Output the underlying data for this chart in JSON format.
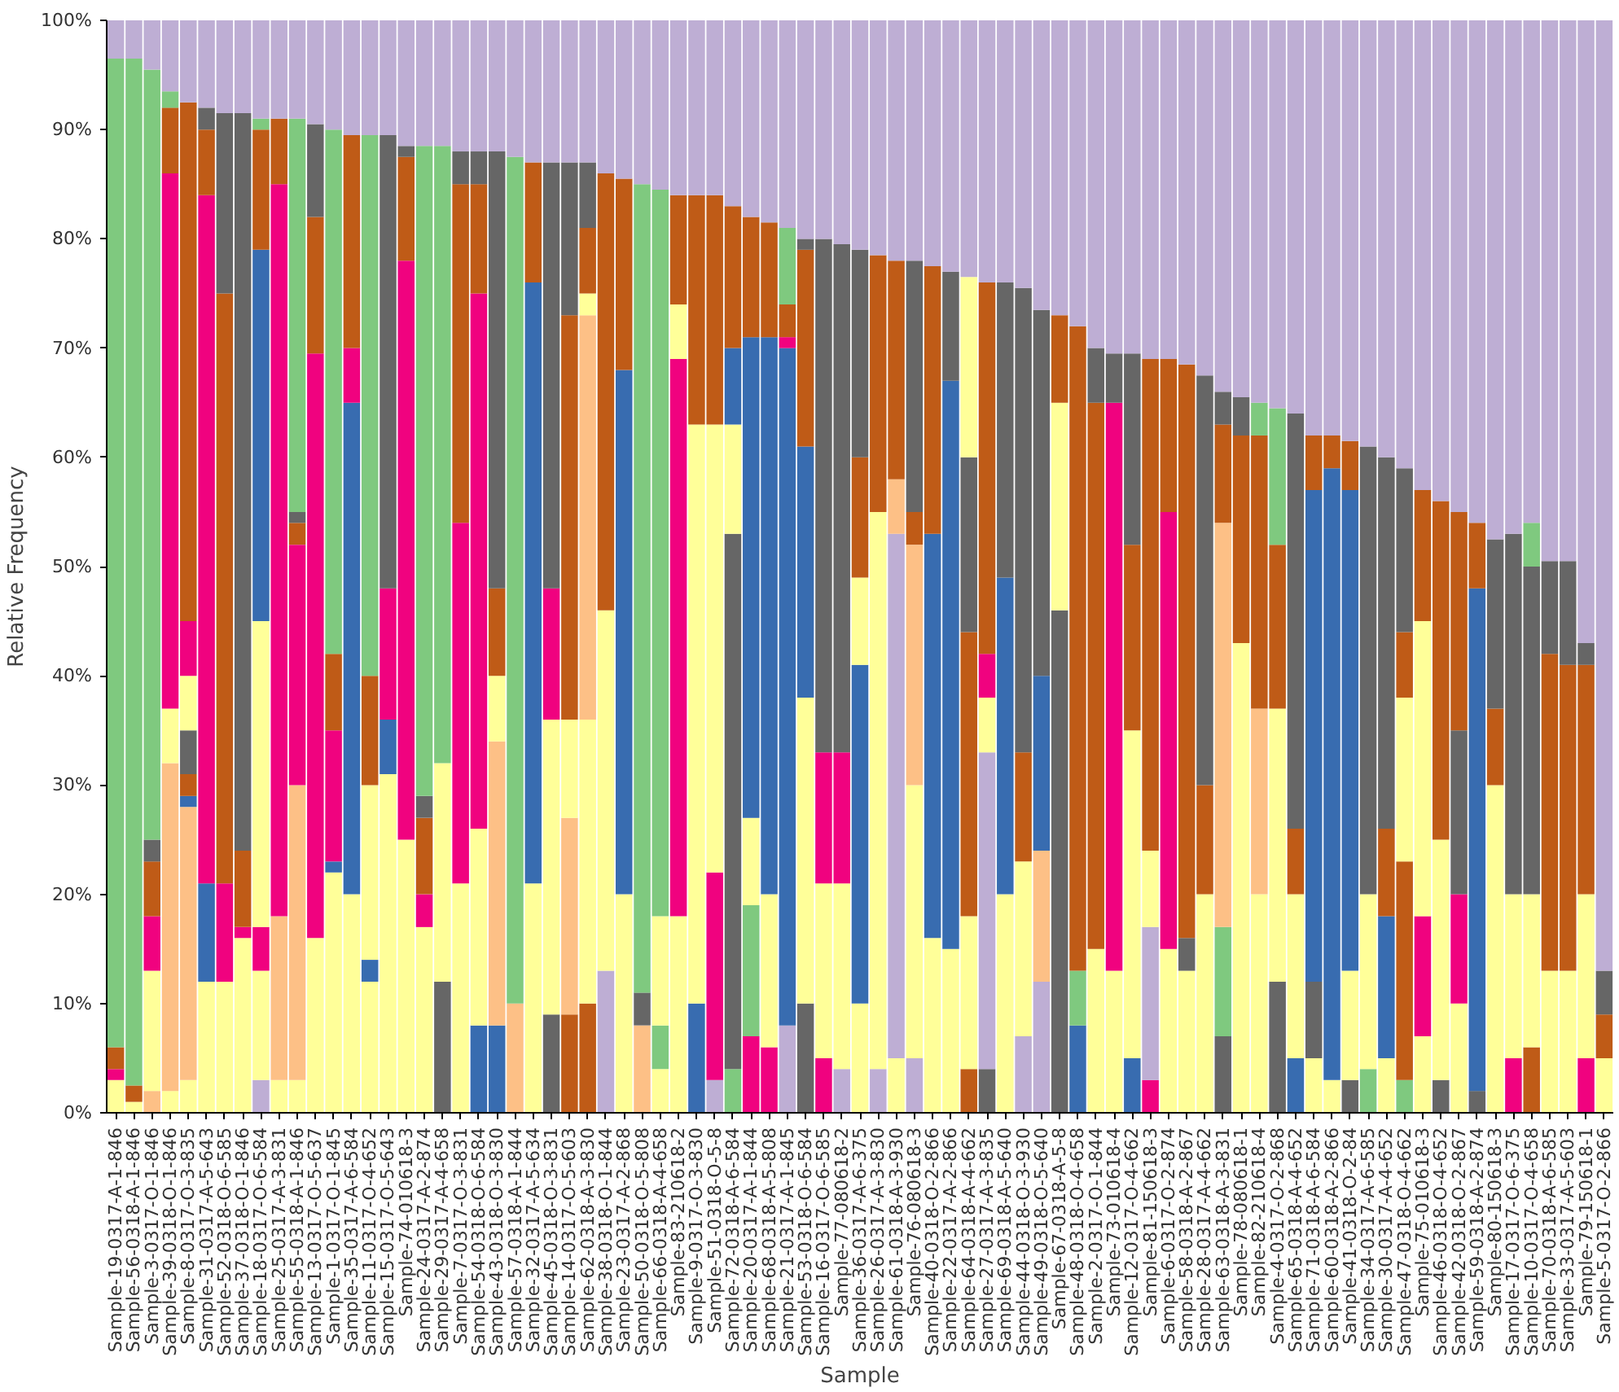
{
  "chart_data": {
    "type": "bar",
    "stacked": true,
    "xlabel": "Sample",
    "ylabel": "Relative Frequency",
    "categories": [
      "Sample-19-0317-A-1-846",
      "Sample-56-0318-A-1-846",
      "Sample-3-0317-O-1-846",
      "Sample-39-0318-O-1-846",
      "Sample-8-0317-O-3-835",
      "Sample-31-0317-A-5-643",
      "Sample-52-0318-O-6-585",
      "Sample-37-0318-O-1-846",
      "Sample-18-0317-O-6-584",
      "Sample-25-0317-A-3-831",
      "Sample-55-0318-A-1-846",
      "Sample-13-0317-O-5-637",
      "Sample-1-0317-O-1-845",
      "Sample-35-0317-A-6-584",
      "Sample-11-0317-O-4-652",
      "Sample-15-0317-O-5-643",
      "Sample-74-010618-3",
      "Sample-24-0317-A-2-874",
      "Sample-29-0317-A-4-658",
      "Sample-7-0317-O-3-831",
      "Sample-54-0318-O-6-584",
      "Sample-43-0318-O-3-830",
      "Sample-57-0318-A-1-844",
      "Sample-32-0317-A-5-634",
      "Sample-45-0318-O-3-831",
      "Sample-14-0317-O-5-603",
      "Sample-62-0318-A-3-830",
      "Sample-38-0318-O-1-844",
      "Sample-23-0317-A-2-868",
      "Sample-50-0318-O-5-808",
      "Sample-66-0318-A-4-658",
      "Sample-83-210618-2",
      "Sample-9-0317-O-3-830",
      "Sample-51-0318-O-5-8",
      "Sample-72-0318-A-6-584",
      "Sample-20-0317-A-1-844",
      "Sample-68-0318-A-5-808",
      "Sample-21-0317-A-1-845",
      "Sample-53-0318-O-6-584",
      "Sample-16-0317-O-6-585",
      "Sample-77-080618-2",
      "Sample-36-0317-A-6-375",
      "Sample-26-0317-A-3-830",
      "Sample-61-0318-A-3-930",
      "Sample-76-080618-3",
      "Sample-40-0318-O-2-866",
      "Sample-22-0317-A-2-866",
      "Sample-64-0318-A-4-662",
      "Sample-27-0317-A-3-835",
      "Sample-69-0318-A-5-640",
      "Sample-44-0318-O-3-930",
      "Sample-49-0318-O-5-640",
      "Sample-67-0318-A-5-8",
      "Sample-48-0318-O-4-658",
      "Sample-2-0317-O-1-844",
      "Sample-73-010618-4",
      "Sample-12-0317-O-4-662",
      "Sample-81-150618-3",
      "Sample-6-0317-O-2-874",
      "Sample-58-0318-A-2-867",
      "Sample-28-0317-A-4-662",
      "Sample-63-0318-A-3-831",
      "Sample-78-080618-1",
      "Sample-82-210618-4",
      "Sample-4-0317-O-2-868",
      "Sample-65-0318-A-4-652",
      "Sample-71-0318-A-6-584",
      "Sample-60-0318-A-2-866",
      "Sample-41-0318-O-2-84",
      "Sample-34-0317-A-6-585",
      "Sample-30-0317-A-4-652",
      "Sample-47-0318-O-4-662",
      "Sample-75-010618-3",
      "Sample-46-0318-O-4-652",
      "Sample-42-0318-O-2-867",
      "Sample-59-0318-A-2-874",
      "Sample-80-150618-3",
      "Sample-17-0317-O-6-375",
      "Sample-10-0317-O-4-658",
      "Sample-70-0318-A-6-585",
      "Sample-33-0317-A-5-603",
      "Sample-79-150618-1",
      "Sample-5-0317-O-2-866"
    ],
    "ylim": [
      0,
      100
    ],
    "yticks": [
      {
        "value": 0,
        "label": "0%"
      },
      {
        "value": 10,
        "label": "10%"
      },
      {
        "value": 20,
        "label": "20%"
      },
      {
        "value": 30,
        "label": "30%"
      },
      {
        "value": 40,
        "label": "40%"
      },
      {
        "value": 50,
        "label": "50%"
      },
      {
        "value": 60,
        "label": "60%"
      },
      {
        "value": 70,
        "label": "70%"
      },
      {
        "value": 80,
        "label": "80%"
      },
      {
        "value": 90,
        "label": "90%"
      },
      {
        "value": 100,
        "label": "100%"
      }
    ],
    "series": [
      {
        "values": [
          3,
          1,
          2,
          2,
          3,
          12,
          12,
          16,
          3,
          3,
          3,
          16,
          22,
          20,
          12,
          31,
          25,
          17,
          12,
          21,
          8,
          8,
          10,
          21,
          9,
          9,
          10,
          13,
          20,
          8,
          4,
          18,
          10,
          3,
          4,
          7,
          6,
          8,
          10,
          5,
          4,
          10,
          4,
          5,
          5,
          16,
          15,
          4,
          4,
          20,
          7,
          12,
          46,
          8,
          15,
          13,
          5,
          3,
          15,
          13,
          20,
          7,
          43,
          20,
          12,
          5,
          5,
          3,
          3,
          4,
          5,
          3,
          7,
          3,
          10,
          2,
          30,
          5,
          6,
          13,
          13,
          5,
          5
        ],
        "colors": [
          "#ffff99",
          "#ffff99",
          "#fdc086",
          "#ffff99",
          "#ffff99",
          "#ffff99",
          "#ffff99",
          "#ffff99",
          "#beaed4",
          "#ffff99",
          "#ffff99",
          "#ffff99",
          "#ffff99",
          "#ffff99",
          "#ffff99",
          "#ffff99",
          "#ffff99",
          "#ffff99",
          "#666666",
          "#ffff99",
          "#386cb0",
          "#386cb0",
          "#fdc086",
          "#ffff99",
          "#666666",
          "#bf5b17",
          "#bf5b17",
          "#beaed4",
          "#ffff99",
          "#fdc086",
          "#ffff99",
          "#ffff99",
          "#386cb0",
          "#beaed4",
          "#7fc97f",
          "#f0027f",
          "#f0027f",
          "#beaed4",
          "#666666",
          "#f0027f",
          "#beaed4",
          "#ffff99",
          "#beaed4",
          "#ffff99",
          "#beaed4",
          "#ffff99",
          "#ffff99",
          "#bf5b17",
          "#666666",
          "#ffff99",
          "#beaed4",
          "#beaed4",
          "#666666",
          "#386cb0",
          "#ffff99",
          "#ffff99",
          "#386cb0",
          "#f0027f",
          "#ffff99",
          "#ffff99",
          "#ffff99",
          "#666666",
          "#ffff99",
          "#ffff99",
          "#666666",
          "#386cb0",
          "#ffff99",
          "#ffff99",
          "#666666",
          "#7fc97f",
          "#ffff99",
          "#7fc97f",
          "#ffff99",
          "#666666",
          "#ffff99",
          "#666666",
          "#ffff99",
          "#f0027f",
          "#bf5b17",
          "#ffff99",
          "#ffff99",
          "#f0027f",
          "#ffff99"
        ]
      },
      {
        "values": [
          1,
          1.5,
          11,
          30,
          25,
          9,
          9,
          1,
          10,
          15,
          27,
          53.5,
          1,
          45,
          2,
          5,
          53,
          3,
          20,
          33,
          18,
          26,
          77.5,
          55,
          27,
          18,
          26,
          33,
          48,
          3,
          4,
          51,
          53,
          19,
          49,
          12,
          14,
          62,
          28,
          16,
          17,
          31,
          51,
          48,
          25,
          37,
          52,
          14,
          29,
          29,
          16,
          12,
          19,
          5,
          50,
          52,
          30,
          14,
          40,
          3,
          10,
          10,
          19,
          17,
          25,
          15,
          7,
          56,
          10,
          16,
          13,
          20,
          11,
          22,
          10,
          46,
          7,
          15,
          14,
          29,
          28,
          15,
          4
        ],
        "colors": [
          "#f0027f",
          "#bf5b17",
          "#ffff99",
          "#fdc086",
          "#fdc086",
          "#386cb0",
          "#f0027f",
          "#f0027f",
          "#ffff99",
          "#fdc086",
          "#fdc086",
          "#f0027f",
          "#386cb0",
          "#386cb0",
          "#386cb0",
          "#386cb0",
          "#f0027f",
          "#f0027f",
          "#ffff99",
          "#f0027f",
          "#ffff99",
          "#fdc086",
          "#7fc97f",
          "#386cb0",
          "#ffff99",
          "#fdc086",
          "#ffff99",
          "#ffff99",
          "#386cb0",
          "#666666",
          "#7fc97f",
          "#f0027f",
          "#ffff99",
          "#f0027f",
          "#666666",
          "#7fc97f",
          "#ffff99",
          "#386cb0",
          "#ffff99",
          "#ffff99",
          "#ffff99",
          "#386cb0",
          "#ffff99",
          "#beaed4",
          "#ffff99",
          "#386cb0",
          "#386cb0",
          "#ffff99",
          "#beaed4",
          "#386cb0",
          "#ffff99",
          "#fdc086",
          "#ffff99",
          "#7fc97f",
          "#bf5b17",
          "#f0027f",
          "#ffff99",
          "#beaed4",
          "#f0027f",
          "#666666",
          "#bf5b17",
          "#7fc97f",
          "#bf5b17",
          "#fdc086",
          "#ffff99",
          "#ffff99",
          "#666666",
          "#386cb0",
          "#ffff99",
          "#ffff99",
          "#386cb0",
          "#bf5b17",
          "#f0027f",
          "#ffff99",
          "#f0027f",
          "#386cb0",
          "#bf5b17",
          "#ffff99",
          "#ffff99",
          "#bf5b17",
          "#bf5b17",
          "#ffff99",
          "#bf5b17"
        ]
      },
      {
        "values": [
          2,
          94,
          5,
          5,
          1,
          63,
          54,
          7,
          4,
          67,
          22,
          12.5,
          12,
          5,
          16,
          12,
          9.5,
          7,
          56.5,
          31,
          49,
          6,
          12.5,
          11,
          12,
          9,
          37,
          40,
          17.5,
          74,
          10,
          5,
          21,
          41,
          10,
          8,
          51,
          1,
          23,
          12,
          12,
          8,
          23.5,
          5,
          22,
          24.5,
          10,
          26,
          5,
          27,
          10,
          16,
          8,
          59,
          5,
          4.5,
          17,
          7,
          14,
          52.5,
          37.5,
          37,
          3.5,
          25,
          15,
          6,
          45,
          3,
          44,
          41,
          8,
          15,
          27,
          31,
          15,
          6,
          15.5,
          33,
          30,
          8.5,
          9.5,
          21,
          4
        ],
        "colors": [
          "#bf5b17",
          "#7fc97f",
          "#f0027f",
          "#ffff99",
          "#386cb0",
          "#f0027f",
          "#bf5b17",
          "#bf5b17",
          "#f0027f",
          "#f0027f",
          "#f0027f",
          "#bf5b17",
          "#f0027f",
          "#f0027f",
          "#ffff99",
          "#f0027f",
          "#bf5b17",
          "#bf5b17",
          "#7fc97f",
          "#bf5b17",
          "#f0027f",
          "#ffff99",
          "#beaed4",
          "#bf5b17",
          "#f0027f",
          "#ffff99",
          "#fdc086",
          "#bf5b17",
          "#bf5b17",
          "#7fc97f",
          "#ffff99",
          "#ffff99",
          "#bf5b17",
          "#ffff99",
          "#ffff99",
          "#ffff99",
          "#386cb0",
          "#f0027f",
          "#386cb0",
          "#f0027f",
          "#f0027f",
          "#ffff99",
          "#bf5b17",
          "#fdc086",
          "#fdc086",
          "#bf5b17",
          "#666666",
          "#bf5b17",
          "#ffff99",
          "#666666",
          "#bf5b17",
          "#386cb0",
          "#bf5b17",
          "#bf5b17",
          "#666666",
          "#666666",
          "#bf5b17",
          "#ffff99",
          "#bf5b17",
          "#bf5b17",
          "#666666",
          "#fdc086",
          "#666666",
          "#bf5b17",
          "#bf5b17",
          "#bf5b17",
          "#386cb0",
          "#bf5b17",
          "#386cb0",
          "#666666",
          "#bf5b17",
          "#ffff99",
          "#ffff99",
          "#bf5b17",
          "#666666",
          "#bf5b17",
          "#666666",
          "#666666",
          "#666666",
          "#666666",
          "#666666",
          "#bf5b17",
          "#666666"
        ]
      },
      {
        "values": [
          90.5,
          3.5,
          5,
          49,
          2,
          6,
          16.5,
          67.5,
          28,
          6,
          2,
          8.5,
          7,
          19.5,
          10,
          41.5,
          1,
          2,
          11.5,
          3,
          10,
          8,
          null,
          13,
          39,
          37,
          2,
          14,
          14.5,
          15,
          66.5,
          10,
          16,
          21,
          7,
          44,
          10.5,
          3,
          18,
          47,
          46.5,
          11,
          21.5,
          20,
          3,
          22.5,
          23,
          16,
          4,
          24,
          42.5,
          33.5,
          27,
          28,
          30,
          30.5,
          17.5,
          45,
          31,
          31.5,
          32.5,
          9,
          34.5,
          3,
          12.5,
          38,
          5,
          38,
          4.5,
          39,
          34,
          6,
          12,
          44,
          20,
          46,
          47.5,
          47,
          4,
          49.5,
          49.5,
          2,
          87
        ],
        "colors": [
          "#7fc97f",
          "#beaed4",
          "#bf5b17",
          "#f0027f",
          "#bf5b17",
          "#bf5b17",
          "#666666",
          "#666666",
          "#ffff99",
          "#bf5b17",
          "#bf5b17",
          "#666666",
          "#bf5b17",
          "#bf5b17",
          "#bf5b17",
          "#666666",
          "#666666",
          "#666666",
          "#beaed4",
          "#666666",
          "#bf5b17",
          "#bf5b17",
          null,
          "#beaed4",
          "#666666",
          "#bf5b17",
          "#ffff99",
          "#beaed4",
          "#beaed4",
          "#beaed4",
          "#7fc97f",
          "#bf5b17",
          "#beaed4",
          "#bf5b17",
          "#386cb0",
          "#386cb0",
          "#bf5b17",
          "#bf5b17",
          "#bf5b17",
          "#666666",
          "#666666",
          "#bf5b17",
          "#beaed4",
          "#bf5b17",
          "#bf5b17",
          "#beaed4",
          "#beaed4",
          "#666666",
          "#f0027f",
          "#beaed4",
          "#666666",
          "#666666",
          "#beaed4",
          "#beaed4",
          "#beaed4",
          "#beaed4",
          "#666666",
          "#bf5b17",
          "#beaed4",
          "#beaed4",
          "#beaed4",
          "#bf5b17",
          "#beaed4",
          "#7fc97f",
          "#7fc97f",
          "#666666",
          "#bf5b17",
          "#beaed4",
          "#bf5b17",
          "#beaed4",
          "#666666",
          "#bf5b17",
          "#bf5b17",
          "#beaed4",
          "#bf5b17",
          "#beaed4",
          "#beaed4",
          "#beaed4",
          "#7fc97f",
          "#beaed4",
          "#beaed4",
          "#666666",
          "#beaed4"
        ]
      },
      {
        "values": [
          3.5,
          null,
          2,
          6,
          4,
          2,
          8.5,
          8.5,
          34,
          9,
          1,
          9.5,
          48,
          10.5,
          49.5,
          10.5,
          11.5,
          59.5,
          null,
          12,
          3,
          40,
          null,
          null,
          13,
          14,
          6,
          null,
          null,
          null,
          15.5,
          16,
          null,
          16,
          13,
          11,
          18.5,
          7,
          1,
          20,
          20.5,
          19,
          null,
          22,
          23,
          null,
          null,
          16.5,
          34,
          null,
          24.5,
          26.5,
          null,
          null,
          null,
          null,
          30.5,
          31,
          null,
          null,
          null,
          3,
          null,
          35,
          35.5,
          36,
          38,
          null,
          38.5,
          null,
          40,
          15,
          43,
          null,
          45,
          null,
          null,
          null,
          46,
          null,
          null,
          57,
          null
        ],
        "colors": [
          "#beaed4",
          null,
          "#666666",
          "#bf5b17",
          "#666666",
          "#666666",
          "#beaed4",
          "#beaed4",
          "#386cb0",
          "#beaed4",
          "#666666",
          "#beaed4",
          "#7fc97f",
          "#beaed4",
          "#7fc97f",
          "#beaed4",
          "#beaed4",
          "#7fc97f",
          null,
          "#beaed4",
          "#666666",
          "#666666",
          null,
          null,
          "#beaed4",
          "#666666",
          "#bf5b17",
          null,
          null,
          null,
          "#beaed4",
          "#beaed4",
          null,
          "#beaed4",
          "#bf5b17",
          "#bf5b17",
          "#beaed4",
          "#7fc97f",
          "#666666",
          "#beaed4",
          "#beaed4",
          "#666666",
          null,
          "#beaed4",
          "#666666",
          null,
          null,
          "#ffff99",
          "#bf5b17",
          null,
          "#beaed4",
          "#beaed4",
          null,
          null,
          null,
          null,
          "#beaed4",
          "#beaed4",
          null,
          null,
          null,
          "#666666",
          null,
          "#beaed4",
          "#beaed4",
          "#beaed4",
          "#beaed4",
          null,
          "#beaed4",
          null,
          "#beaed4",
          "#666666",
          "#beaed4",
          null,
          "#beaed4",
          null,
          null,
          null,
          "#beaed4",
          null,
          null,
          "#beaed4",
          null
        ]
      },
      {
        "values": [
          null,
          null,
          70.5,
          1.5,
          5,
          8,
          null,
          null,
          11,
          null,
          36,
          null,
          10,
          null,
          10.5,
          null,
          null,
          11.5,
          null,
          null,
          12,
          12,
          null,
          null,
          null,
          13,
          6,
          null,
          null,
          null,
          null,
          null,
          null,
          null,
          17,
          18,
          null,
          19,
          20,
          null,
          null,
          21,
          null,
          null,
          22,
          null,
          null,
          23.5,
          24,
          null,
          null,
          null,
          null,
          null,
          null,
          null,
          null,
          null,
          null,
          null,
          null,
          34,
          null,
          null,
          null,
          null,
          null,
          null,
          null,
          null,
          null,
          41,
          null,
          null,
          null,
          null,
          null,
          null,
          null,
          null,
          null,
          null,
          null
        ],
        "colors": [
          null,
          null,
          "#7fc97f",
          "#7fc97f",
          "#ffff99",
          "#beaed4",
          null,
          null,
          "#bf5b17",
          null,
          "#7fc97f",
          null,
          "#beaed4",
          null,
          "#beaed4",
          null,
          null,
          "#beaed4",
          null,
          null,
          "#beaed4",
          "#beaed4",
          null,
          null,
          null,
          "#beaed4",
          "#666666",
          null,
          null,
          null,
          null,
          null,
          null,
          null,
          "#beaed4",
          "#beaed4",
          null,
          "#beaed4",
          "#beaed4",
          null,
          null,
          "#beaed4",
          null,
          null,
          "#beaed4",
          null,
          null,
          "#beaed4",
          "#beaed4",
          null,
          null,
          null,
          null,
          null,
          null,
          null,
          null,
          null,
          null,
          null,
          null,
          "#beaed4",
          null,
          null,
          null,
          null,
          null,
          null,
          null,
          null,
          null,
          "#beaed4",
          null,
          null,
          null,
          null,
          null,
          null,
          null,
          null,
          null,
          null,
          null
        ]
      },
      {
        "values": [
          null,
          null,
          4.5,
          6.5,
          5,
          null,
          null,
          null,
          1,
          null,
          9,
          null,
          null,
          null,
          null,
          null,
          null,
          null,
          null,
          null,
          null,
          null,
          null,
          null,
          null,
          null,
          13,
          null,
          null,
          null,
          null,
          null,
          null,
          null,
          null,
          null,
          null,
          null,
          null,
          null,
          null,
          null,
          null,
          null,
          null,
          null,
          null,
          null,
          null,
          null,
          null,
          null,
          null,
          null,
          null,
          null,
          null,
          null,
          null,
          null,
          null,
          null,
          null,
          null,
          null,
          null,
          null,
          null,
          null,
          null,
          null,
          null,
          null,
          null,
          null,
          null,
          null,
          null,
          null,
          null,
          null,
          null,
          null
        ],
        "colors": [
          null,
          null,
          "#beaed4",
          "#beaed4",
          "#f0027f",
          null,
          null,
          null,
          "#7fc97f",
          null,
          "#beaed4",
          null,
          null,
          null,
          null,
          null,
          null,
          null,
          null,
          null,
          null,
          null,
          null,
          null,
          null,
          null,
          "#beaed4",
          null,
          null,
          null,
          null,
          null,
          null,
          null,
          null,
          null,
          null,
          null,
          null,
          null,
          null,
          null,
          null,
          null,
          null,
          null,
          null,
          null,
          null,
          null,
          null,
          null,
          null,
          null,
          null,
          null,
          null,
          null,
          null,
          null,
          null,
          null,
          null,
          null,
          null,
          null,
          null,
          null,
          null,
          null,
          null,
          null,
          null,
          null,
          null,
          null,
          null,
          null,
          null,
          null,
          null,
          null,
          null
        ]
      },
      {
        "values": [
          null,
          null,
          null,
          null,
          47.5,
          null,
          null,
          null,
          9,
          null,
          null,
          null,
          null,
          null,
          null,
          null,
          null,
          null,
          null,
          null,
          null,
          null,
          null,
          null,
          null,
          null,
          null,
          null,
          null,
          null,
          null,
          null,
          null,
          null,
          null,
          null,
          null,
          null,
          null,
          null,
          null,
          null,
          null,
          null,
          null,
          null,
          null,
          null,
          null,
          null,
          null,
          null,
          null,
          null,
          null,
          null,
          null,
          null,
          null,
          null,
          null,
          null,
          null,
          null,
          null,
          null,
          null,
          null,
          null,
          null,
          null,
          null,
          null,
          null,
          null,
          null,
          null,
          null,
          null,
          null,
          null,
          null,
          null
        ],
        "colors": [
          null,
          null,
          null,
          null,
          "#bf5b17",
          null,
          null,
          null,
          "#beaed4",
          null,
          null,
          null,
          null,
          null,
          null,
          null,
          null,
          null,
          null,
          null,
          null,
          null,
          null,
          null,
          null,
          null,
          null,
          null,
          null,
          null,
          null,
          null,
          null,
          null,
          null,
          null,
          null,
          null,
          null,
          null,
          null,
          null,
          null,
          null,
          null,
          null,
          null,
          null,
          null,
          null,
          null,
          null,
          null,
          null,
          null,
          null,
          null,
          null,
          null,
          null,
          null,
          null,
          null,
          null,
          null,
          null,
          null,
          null,
          null,
          null,
          null,
          null,
          null,
          null,
          null,
          null,
          null,
          null,
          null,
          null,
          null,
          null,
          null
        ]
      },
      {
        "values": [
          null,
          null,
          null,
          null,
          7.5,
          null,
          null,
          null,
          null,
          null,
          null,
          null,
          null,
          null,
          null,
          null,
          null,
          null,
          null,
          null,
          null,
          null,
          null,
          null,
          null,
          null,
          null,
          null,
          null,
          null,
          null,
          null,
          null,
          null,
          null,
          null,
          null,
          null,
          null,
          null,
          null,
          null,
          null,
          null,
          null,
          null,
          null,
          null,
          null,
          null,
          null,
          null,
          null,
          null,
          null,
          null,
          null,
          null,
          null,
          null,
          null,
          null,
          null,
          null,
          null,
          null,
          null,
          null,
          null,
          null,
          null,
          null,
          null,
          null,
          null,
          null,
          null,
          null,
          null,
          null,
          null,
          null,
          null
        ],
        "colors": [
          null,
          null,
          null,
          null,
          "#beaed4",
          null,
          null,
          null,
          null,
          null,
          null,
          null,
          null,
          null,
          null,
          null,
          null,
          null,
          null,
          null,
          null,
          null,
          null,
          null,
          null,
          null,
          null,
          null,
          null,
          null,
          null,
          null,
          null,
          null,
          null,
          null,
          null,
          null,
          null,
          null,
          null,
          null,
          null,
          null,
          null,
          null,
          null,
          null,
          null,
          null,
          null,
          null,
          null,
          null,
          null,
          null,
          null,
          null,
          null,
          null,
          null,
          null,
          null,
          null,
          null,
          null,
          null,
          null,
          null,
          null,
          null,
          null,
          null,
          null,
          null,
          null,
          null,
          null,
          null,
          null,
          null,
          null,
          null
        ]
      }
    ]
  }
}
